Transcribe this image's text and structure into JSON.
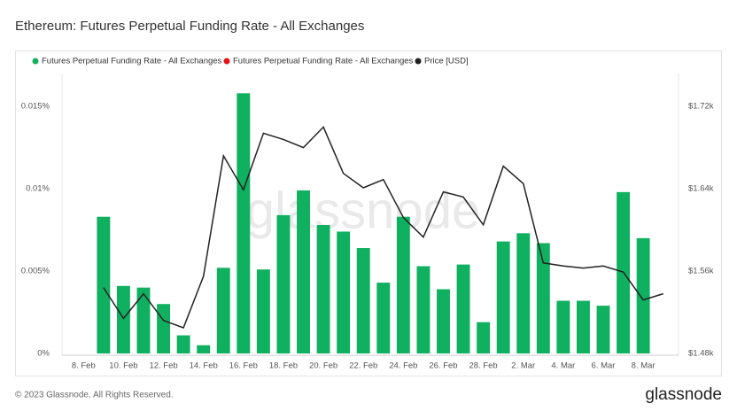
{
  "chart_data": {
    "type": "bar",
    "title": "Ethereum: Futures Perpetual Funding Rate - All Exchanges",
    "categories": [
      "8. Feb",
      null,
      "10. Feb",
      null,
      "12. Feb",
      null,
      "14. Feb",
      null,
      "16. Feb",
      null,
      "18. Feb",
      null,
      "20. Feb",
      null,
      "22. Feb",
      null,
      "24. Feb",
      null,
      "26. Feb",
      null,
      "28. Feb",
      null,
      "2. Mar",
      null,
      "4. Mar",
      null,
      "6. Mar",
      null,
      "8. Mar",
      null
    ],
    "series": [
      {
        "name": "Futures Perpetual Funding Rate - All Exchanges",
        "color": "#0fb060",
        "values": [
          null,
          0.0083,
          0.0041,
          0.004,
          0.003,
          0.0011,
          0.0005,
          0.0052,
          0.0158,
          0.0051,
          0.0084,
          0.0099,
          0.0078,
          0.0074,
          0.0064,
          0.0043,
          0.0083,
          0.0053,
          0.0039,
          0.0054,
          0.0019,
          0.0068,
          0.0073,
          0.0067,
          0.0032,
          0.0032,
          0.0029,
          0.0098,
          0.007,
          null
        ]
      },
      {
        "name": "Futures Perpetual Funding Rate - All Exchanges",
        "color": "#e5141b",
        "values": [
          null,
          null,
          null,
          null,
          null,
          null,
          null,
          null,
          null,
          null,
          null,
          null,
          null,
          null,
          null,
          null,
          null,
          null,
          null,
          null,
          null,
          null,
          null,
          null,
          null,
          null,
          null,
          null,
          null,
          null
        ]
      },
      {
        "name": "Price [USD]",
        "color": "#222222",
        "axis": "y2",
        "type": "line",
        "values": [
          null,
          1544,
          1514,
          1538,
          1512,
          1505,
          1555,
          1672,
          1639,
          1694,
          1688,
          1680,
          1700,
          1655,
          1641,
          1649,
          1612,
          1593,
          1637,
          1632,
          1605,
          1662,
          1645,
          1568,
          1565,
          1563,
          1565,
          1559,
          1532,
          1538
        ]
      }
    ],
    "ylim": [
      0,
      0.017
    ],
    "yticks": [
      {
        "value": 0,
        "label": "0%"
      },
      {
        "value": 0.005,
        "label": "0.005%"
      },
      {
        "value": 0.01,
        "label": "0.01%"
      },
      {
        "value": 0.015,
        "label": "0.015%"
      }
    ],
    "y2lim": [
      1480,
      1752
    ],
    "y2ticks": [
      {
        "value": 1480,
        "label": "$1.48k"
      },
      {
        "value": 1560,
        "label": "$1.56k"
      },
      {
        "value": 1640,
        "label": "$1.64k"
      },
      {
        "value": 1720,
        "label": "$1.72k"
      }
    ],
    "grid": false,
    "watermark": "glassnode"
  },
  "footer": {
    "copyright": "© 2023 Glassnode. All Rights Reserved.",
    "logo": "glassnode"
  }
}
